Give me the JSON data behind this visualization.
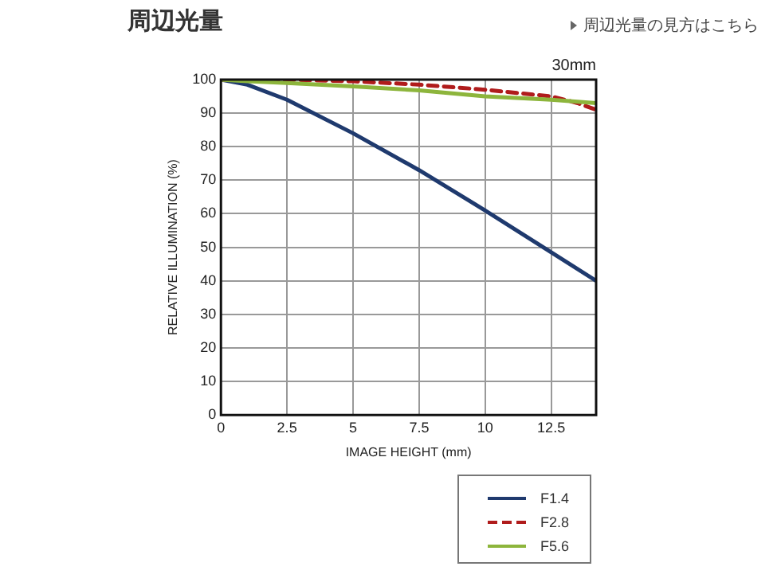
{
  "chart_data": {
    "type": "line",
    "title": "周辺光量",
    "subtitle": "30mm",
    "xlabel": "IMAGE HEIGHT (mm)",
    "ylabel": "RELATIVE ILLUMINATION (%)",
    "annotations": [
      "周辺光量の見方はこちら"
    ],
    "x": [
      0,
      1,
      2.5,
      5,
      7.5,
      10,
      12.5,
      14.2
    ],
    "series": [
      {
        "name": "F1.4",
        "color": "#1f3a6e",
        "line_style": "solid",
        "values": [
          100,
          98.5,
          94,
          84,
          73,
          61,
          48.5,
          40
        ]
      },
      {
        "name": "F2.8",
        "color": "#b01c1c",
        "line_style": "dashed",
        "x": [
          0,
          2.5,
          5,
          7.5,
          10,
          12.5,
          13.5,
          14.2
        ],
        "values": [
          100,
          100,
          99.5,
          98.5,
          97,
          95,
          93,
          91
        ]
      },
      {
        "name": "F5.6",
        "color": "#8db53c",
        "line_style": "solid",
        "values": [
          100,
          99.5,
          99,
          98,
          96.8,
          95,
          94,
          93
        ]
      }
    ],
    "xlim": [
      0,
      14.2
    ],
    "xticks": [
      0,
      2.5,
      5,
      7.5,
      10,
      12.5
    ],
    "ylim": [
      0,
      100
    ],
    "yticks": [
      0,
      10,
      20,
      30,
      40,
      50,
      60,
      70,
      80,
      90,
      100
    ],
    "grid": true,
    "legend": "bottom right",
    "marker": "none"
  }
}
